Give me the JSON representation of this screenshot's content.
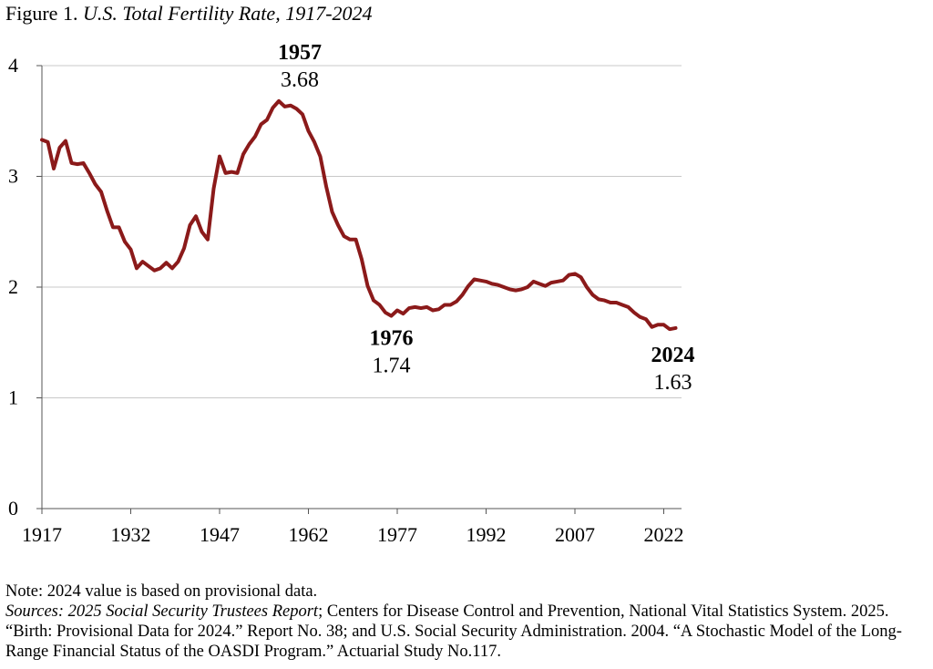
{
  "figure": {
    "label": "Figure 1.",
    "title": "U.S. Total Fertility Rate, 1917-2024"
  },
  "colors": {
    "line": "#8b1a1a",
    "grid": "#c8c8c8",
    "axis": "#555555"
  },
  "chart_data": {
    "type": "line",
    "title": "U.S. Total Fertility Rate, 1917-2024",
    "xlabel": "",
    "ylabel": "",
    "xlim": [
      1917,
      2025
    ],
    "ylim": [
      0,
      4
    ],
    "grid": true,
    "x_ticks": [
      1917,
      1932,
      1947,
      1962,
      1977,
      1992,
      2007,
      2022
    ],
    "y_ticks": [
      0,
      1,
      2,
      3,
      4
    ],
    "series": [
      {
        "name": "Total Fertility Rate",
        "x": [
          1917,
          1918,
          1919,
          1920,
          1921,
          1922,
          1923,
          1924,
          1925,
          1926,
          1927,
          1928,
          1929,
          1930,
          1931,
          1932,
          1933,
          1934,
          1935,
          1936,
          1937,
          1938,
          1939,
          1940,
          1941,
          1942,
          1943,
          1944,
          1945,
          1946,
          1947,
          1948,
          1949,
          1950,
          1951,
          1952,
          1953,
          1954,
          1955,
          1956,
          1957,
          1958,
          1959,
          1960,
          1961,
          1962,
          1963,
          1964,
          1965,
          1966,
          1967,
          1968,
          1969,
          1970,
          1971,
          1972,
          1973,
          1974,
          1975,
          1976,
          1977,
          1978,
          1979,
          1980,
          1981,
          1982,
          1983,
          1984,
          1985,
          1986,
          1987,
          1988,
          1989,
          1990,
          1991,
          1992,
          1993,
          1994,
          1995,
          1996,
          1997,
          1998,
          1999,
          2000,
          2001,
          2002,
          2003,
          2004,
          2005,
          2006,
          2007,
          2008,
          2009,
          2010,
          2011,
          2012,
          2013,
          2014,
          2015,
          2016,
          2017,
          2018,
          2019,
          2020,
          2021,
          2022,
          2023,
          2024
        ],
        "values": [
          3.33,
          3.31,
          3.07,
          3.26,
          3.32,
          3.12,
          3.11,
          3.12,
          3.03,
          2.93,
          2.86,
          2.69,
          2.54,
          2.54,
          2.41,
          2.34,
          2.17,
          2.23,
          2.19,
          2.15,
          2.17,
          2.22,
          2.17,
          2.23,
          2.35,
          2.56,
          2.64,
          2.5,
          2.43,
          2.89,
          3.18,
          3.03,
          3.04,
          3.03,
          3.2,
          3.29,
          3.36,
          3.47,
          3.51,
          3.62,
          3.68,
          3.63,
          3.64,
          3.61,
          3.56,
          3.41,
          3.31,
          3.18,
          2.91,
          2.68,
          2.56,
          2.46,
          2.43,
          2.43,
          2.25,
          2.01,
          1.88,
          1.84,
          1.77,
          1.74,
          1.79,
          1.76,
          1.81,
          1.82,
          1.81,
          1.82,
          1.79,
          1.8,
          1.84,
          1.84,
          1.87,
          1.93,
          2.01,
          2.07,
          2.06,
          2.05,
          2.03,
          2.02,
          2.0,
          1.98,
          1.97,
          1.98,
          2.0,
          2.05,
          2.03,
          2.01,
          2.04,
          2.05,
          2.06,
          2.11,
          2.12,
          2.09,
          2.0,
          1.93,
          1.89,
          1.88,
          1.86,
          1.86,
          1.84,
          1.82,
          1.77,
          1.73,
          1.71,
          1.64,
          1.66,
          1.66,
          1.62,
          1.63
        ]
      }
    ],
    "annotations": [
      {
        "year": "1957",
        "value": "3.68",
        "x": 1957,
        "y": 3.68
      },
      {
        "year": "1976",
        "value": "1.74",
        "x": 1976,
        "y": 1.74
      },
      {
        "year": "2024",
        "value": "1.63",
        "x": 2024,
        "y": 1.63
      }
    ]
  },
  "notes": {
    "note": "Note: 2024 value is based on provisional data.",
    "sources_label": "Sources: 2025 Social Security Trustees Report",
    "sources_text": "; Centers for Disease Control and Prevention, National Vital Statistics System. 2025. “Birth: Provisional Data for 2024.” Report No. 38; and U.S. Social Security Administration. 2004. “A Stochastic Model of the Long-Range Financial Status of the OASDI Program.” Actuarial Study No.117."
  }
}
